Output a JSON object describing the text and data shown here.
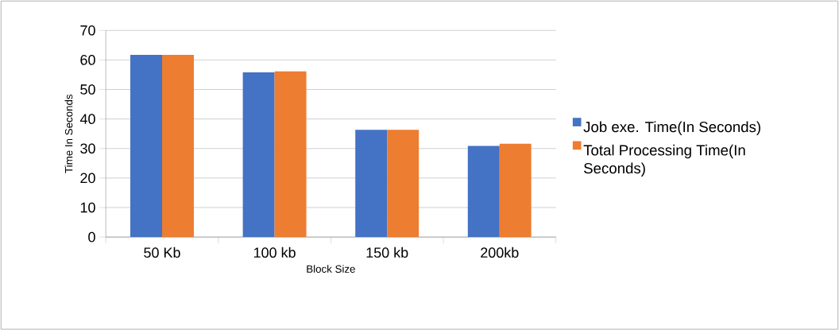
{
  "chart_data": {
    "type": "bar",
    "xlabel": "Block Size",
    "ylabel": "Time In Seconds",
    "categories": [
      "50 Kb",
      "100 kb",
      "150 kb",
      "200kb"
    ],
    "series": [
      {
        "name": "Job exe. Time(In Seconds)",
        "color": "#4472c4",
        "values": [
          61.7,
          55.8,
          36.3,
          30.9
        ]
      },
      {
        "name": "Total Processing Time(In Seconds)",
        "color": "#ed7d31",
        "values": [
          61.7,
          56.1,
          36.3,
          31.6
        ]
      }
    ],
    "ylim": [
      0,
      70
    ],
    "yticks": [
      0,
      10,
      20,
      30,
      40,
      50,
      60,
      70
    ],
    "grid": "y",
    "legend": "right"
  }
}
